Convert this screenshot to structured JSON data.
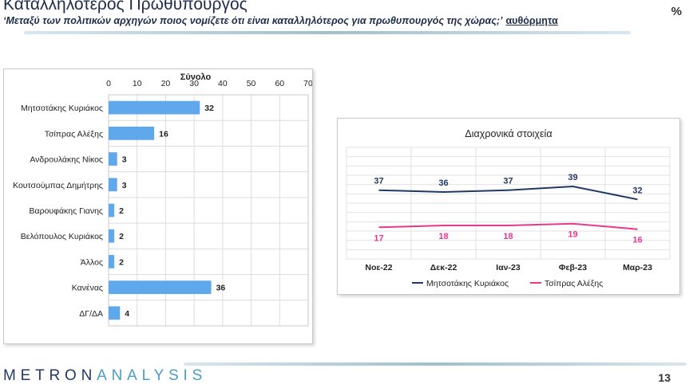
{
  "header": {
    "title": "Καταλληλότερος Πρωθυπουργός",
    "subtitle": "‘Μεταξύ των πολιτικών αρχηγών ποιος νομίζετε ότι είναι καταλληλότερος για πρωθυπουργός της χώρας;’",
    "qualifier": "αυθόρμητα",
    "unit": "%"
  },
  "footer": {
    "logo_part1": "METRON",
    "logo_part2": "ANALYSIS",
    "page_number": "13"
  },
  "chart_data": [
    {
      "type": "bar",
      "orientation": "horizontal",
      "title": "Σύνολο",
      "categories": [
        "Μητσοτάκης Κυριάκος",
        "Τσίπρας Αλέξης",
        "Ανδρουλάκης Νίκος",
        "Κουτσούμπας Δημήτρης",
        "Βαρουφάκης Γιανης",
        "Βελόπουλος Κυριάκος",
        "Άλλος",
        "Κανένας",
        "ΔΓ/ΔΑ"
      ],
      "values": [
        32,
        16,
        3,
        3,
        2,
        2,
        2,
        36,
        4
      ],
      "xlim": [
        0,
        70
      ],
      "ticks": [
        0,
        10,
        20,
        30,
        40,
        50,
        60,
        70
      ],
      "axis_position": "top",
      "grid": true,
      "bar_color": "#5fa8ec"
    },
    {
      "type": "line",
      "title": "Διαχρονικά στοιχεία",
      "x": [
        "Νοε-22",
        "Δεκ-22",
        "Ιαν-23",
        "Φεβ-23",
        "Μαρ-23"
      ],
      "series": [
        {
          "name": "Μητσοτάκης Κυριάκος",
          "values": [
            37,
            36,
            37,
            39,
            32
          ],
          "color": "#1f3864"
        },
        {
          "name": "Τσίπρας Αλέξης",
          "values": [
            17,
            18,
            18,
            19,
            16
          ],
          "color": "#e6388c"
        }
      ],
      "ylim": [
        0,
        60
      ],
      "grid": true,
      "legend": "bottom"
    }
  ]
}
